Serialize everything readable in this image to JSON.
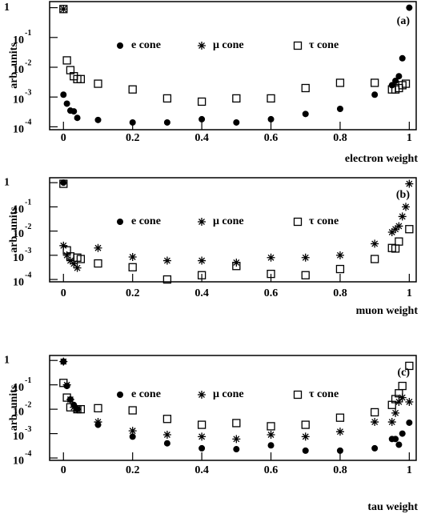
{
  "chart_data": [
    {
      "type": "scatter",
      "panel_label": "(a)",
      "xlabel": "electron weight",
      "ylabel": "arb. units",
      "log_y": true,
      "xlim": [
        -0.04,
        1.02
      ],
      "ylim": [
        8e-05,
        1.6
      ],
      "xticks": [
        0,
        0.2,
        0.4,
        0.6,
        0.8,
        1
      ],
      "yticks": [
        1,
        {
          "value": 0.1,
          "label": "10",
          "sup": "-1"
        },
        {
          "value": 0.01,
          "label": "10",
          "sup": "-2"
        },
        {
          "value": 0.001,
          "label": "10",
          "sup": "-3"
        },
        {
          "value": 0.0001,
          "label": "10",
          "sup": "-4"
        }
      ],
      "x": [
        0,
        0.01,
        0.02,
        0.03,
        0.04,
        0.05,
        0.1,
        0.2,
        0.3,
        0.4,
        0.5,
        0.6,
        0.7,
        0.8,
        0.9,
        0.95,
        0.96,
        0.97,
        0.98,
        0.99,
        1
      ],
      "series": [
        {
          "name": "e cone",
          "marker": "circle",
          "color": "#000000",
          "values": [
            0.0012,
            0.0006,
            0.00035,
            0.00033,
            0.0002,
            null,
            0.00017,
            0.00014,
            0.00014,
            0.00018,
            0.00014,
            0.00018,
            0.00027,
            0.0004,
            0.0012,
            0.0025,
            0.0035,
            0.005,
            0.02,
            null,
            1
          ]
        },
        {
          "name": "μ cone",
          "marker": "asterisk",
          "color": "#000000",
          "values": [
            0.9,
            null,
            null,
            null,
            null,
            null,
            null,
            null,
            null,
            null,
            null,
            null,
            null,
            null,
            null,
            null,
            null,
            null,
            null,
            null,
            null
          ]
        },
        {
          "name": "τ cone",
          "marker": "square",
          "color": "#000000",
          "values": [
            0.9,
            0.017,
            0.008,
            0.005,
            0.004,
            0.004,
            0.0028,
            0.0018,
            0.0009,
            0.0007,
            0.0009,
            0.0009,
            0.002,
            0.003,
            0.003,
            0.0018,
            0.0018,
            0.002,
            0.0025,
            0.0028,
            null
          ]
        }
      ]
    },
    {
      "type": "scatter",
      "panel_label": "(b)",
      "xlabel": "muon weight",
      "ylabel": "arb. units",
      "log_y": true,
      "xlim": [
        -0.04,
        1.02
      ],
      "ylim": [
        8e-05,
        1.6
      ],
      "xticks": [
        0,
        0.2,
        0.4,
        0.6,
        0.8,
        1
      ],
      "yticks": [
        1,
        {
          "value": 0.1,
          "label": "10",
          "sup": "-1"
        },
        {
          "value": 0.01,
          "label": "10",
          "sup": "-2"
        },
        {
          "value": 0.001,
          "label": "10",
          "sup": "-3"
        },
        {
          "value": 0.0001,
          "label": "10",
          "sup": "-4"
        }
      ],
      "x": [
        0,
        0.01,
        0.02,
        0.03,
        0.04,
        0.05,
        0.1,
        0.2,
        0.3,
        0.4,
        0.5,
        0.6,
        0.7,
        0.8,
        0.9,
        0.95,
        0.96,
        0.97,
        0.98,
        0.99,
        1
      ],
      "series": [
        {
          "name": "e cone",
          "marker": "circle",
          "color": "#000000",
          "values": [
            1,
            null,
            null,
            null,
            null,
            null,
            null,
            null,
            null,
            null,
            null,
            null,
            null,
            null,
            null,
            null,
            null,
            null,
            null,
            null,
            null
          ]
        },
        {
          "name": "μ cone",
          "marker": "asterisk",
          "color": "#000000",
          "values": [
            0.0025,
            0.001,
            0.0006,
            0.00045,
            0.0003,
            null,
            0.002,
            0.00085,
            0.0006,
            0.0006,
            0.0005,
            0.0008,
            0.0008,
            0.001,
            0.003,
            0.009,
            0.012,
            0.016,
            0.04,
            0.1,
            0.9
          ]
        },
        {
          "name": "τ cone",
          "marker": "square",
          "color": "#000000",
          "values": [
            0.9,
            0.0016,
            0.0009,
            null,
            0.0008,
            0.0007,
            0.00046,
            0.00032,
            0.0001,
            0.00015,
            0.00036,
            0.00017,
            0.00015,
            0.00027,
            0.0007,
            0.002,
            0.0019,
            0.0037,
            null,
            null,
            0.012
          ]
        }
      ]
    },
    {
      "type": "scatter",
      "panel_label": "(c)",
      "xlabel": "tau weight",
      "ylabel": "arb. units",
      "log_y": true,
      "xlim": [
        -0.04,
        1.02
      ],
      "ylim": [
        8e-05,
        1.6
      ],
      "xticks": [
        0,
        0.2,
        0.4,
        0.6,
        0.8,
        1
      ],
      "yticks": [
        1,
        {
          "value": 0.1,
          "label": "10",
          "sup": "-1"
        },
        {
          "value": 0.01,
          "label": "10",
          "sup": "-2"
        },
        {
          "value": 0.001,
          "label": "10",
          "sup": "-3"
        },
        {
          "value": 0.0001,
          "label": "10",
          "sup": "-4"
        }
      ],
      "x": [
        0,
        0.01,
        0.02,
        0.03,
        0.04,
        0.05,
        0.1,
        0.2,
        0.3,
        0.4,
        0.5,
        0.6,
        0.7,
        0.8,
        0.9,
        0.95,
        0.96,
        0.97,
        0.98,
        0.99,
        1
      ],
      "series": [
        {
          "name": "e cone",
          "marker": "circle",
          "color": "#000000",
          "values": [
            0.9,
            0.09,
            0.025,
            0.015,
            0.01,
            null,
            0.0023,
            0.00075,
            0.0004,
            0.00025,
            0.00023,
            0.00033,
            0.0002,
            0.0002,
            0.00025,
            0.0006,
            0.0006,
            0.00035,
            0.001,
            null,
            0.0028
          ]
        },
        {
          "name": "μ cone",
          "marker": "asterisk",
          "color": "#000000",
          "values": [
            0.9,
            0.1,
            0.025,
            0.012,
            0.01,
            null,
            0.003,
            0.0013,
            0.0009,
            0.00075,
            0.0006,
            0.0009,
            0.00075,
            0.0012,
            0.003,
            0.003,
            0.007,
            0.02,
            0.03,
            null,
            0.02
          ]
        },
        {
          "name": "τ cone",
          "marker": "square",
          "color": "#000000",
          "values": [
            0.12,
            0.03,
            0.012,
            null,
            0.01,
            0.01,
            0.011,
            0.009,
            0.004,
            0.0023,
            0.0027,
            0.002,
            0.0023,
            0.0045,
            0.0075,
            0.015,
            0.026,
            0.045,
            0.09,
            null,
            0.6
          ]
        }
      ]
    }
  ]
}
